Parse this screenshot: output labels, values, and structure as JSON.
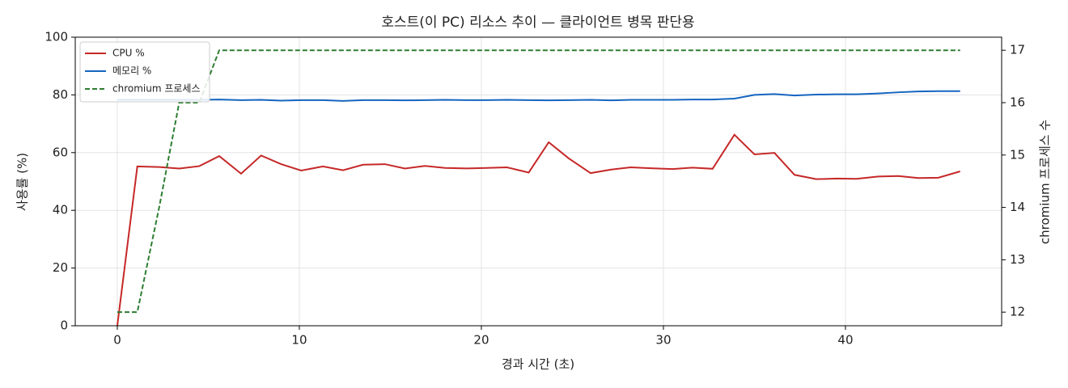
{
  "chart_data": {
    "type": "line",
    "title": "호스트(이 PC) 리소스 추이 — 클라이언트 병목 판단용",
    "xlabel": "경과 시간 (초)",
    "ylabel": "사용률 (%)",
    "y2label": "chromium 프로세스 수",
    "x": [
      0,
      1.1,
      2.3,
      3.4,
      4.5,
      5.6,
      6.8,
      7.9,
      9.0,
      10.1,
      11.3,
      12.4,
      13.5,
      14.7,
      15.8,
      16.9,
      18.0,
      19.2,
      20.3,
      21.4,
      22.6,
      23.7,
      24.8,
      26.0,
      27.1,
      28.2,
      29.3,
      30.5,
      31.6,
      32.7,
      33.9,
      35.0,
      36.1,
      37.2,
      38.4,
      39.5,
      40.6,
      41.8,
      42.9,
      44.0,
      45.1,
      46.3
    ],
    "series": [
      {
        "name": "CPU %",
        "color": "#c62828",
        "linestyle": "solid",
        "axis": "y",
        "values": [
          0,
          55.2,
          55,
          54.5,
          55.3,
          58.8,
          52.7,
          59,
          56,
          53.8,
          55.2,
          53.9,
          55.8,
          56,
          54.5,
          55.4,
          54.7,
          54.5,
          54.7,
          54.9,
          53.1,
          63.6,
          58,
          52.9,
          54.1,
          54.9,
          54.6,
          54.3,
          54.8,
          54.4,
          66.2,
          59.4,
          59.9,
          52.3,
          50.8,
          51,
          50.9,
          51.7,
          51.9,
          51.2,
          51.3,
          53.5
        ]
      },
      {
        "name": "메모리 %",
        "color": "#1565c0",
        "linestyle": "solid",
        "axis": "y",
        "values": [
          78.3,
          78.3,
          78.3,
          78.3,
          78.3,
          78.4,
          78.2,
          78.3,
          78,
          78.2,
          78.2,
          77.9,
          78.2,
          78.2,
          78.1,
          78.2,
          78.3,
          78.2,
          78.2,
          78.3,
          78.2,
          78.1,
          78.2,
          78.3,
          78.1,
          78.3,
          78.3,
          78.3,
          78.4,
          78.4,
          78.7,
          80,
          80.3,
          79.8,
          80.1,
          80.2,
          80.2,
          80.5,
          80.9,
          81.2,
          81.3,
          81.3
        ]
      },
      {
        "name": "chromium 프로세스",
        "color": "#2e7d32",
        "linestyle": "dashed",
        "axis": "y2",
        "values": [
          12,
          12,
          14,
          16,
          16,
          17,
          17,
          17,
          17,
          17,
          17,
          17,
          17,
          17,
          17,
          17,
          17,
          17,
          17,
          17,
          17,
          17,
          17,
          17,
          17,
          17,
          17,
          17,
          17,
          17,
          17,
          17,
          17,
          17,
          17,
          17,
          17,
          17,
          17,
          17,
          17,
          17
        ]
      }
    ],
    "xlim": [
      -2.31,
      48.58
    ],
    "xticks": [
      0,
      10,
      20,
      30,
      40
    ],
    "ylim": [
      0,
      100
    ],
    "yticks": [
      0,
      20,
      40,
      60,
      80,
      100
    ],
    "y2lim": [
      11.74,
      17.25
    ],
    "y2ticks": [
      12,
      13,
      14,
      15,
      16,
      17
    ],
    "grid": true,
    "legend": "upper-left"
  }
}
